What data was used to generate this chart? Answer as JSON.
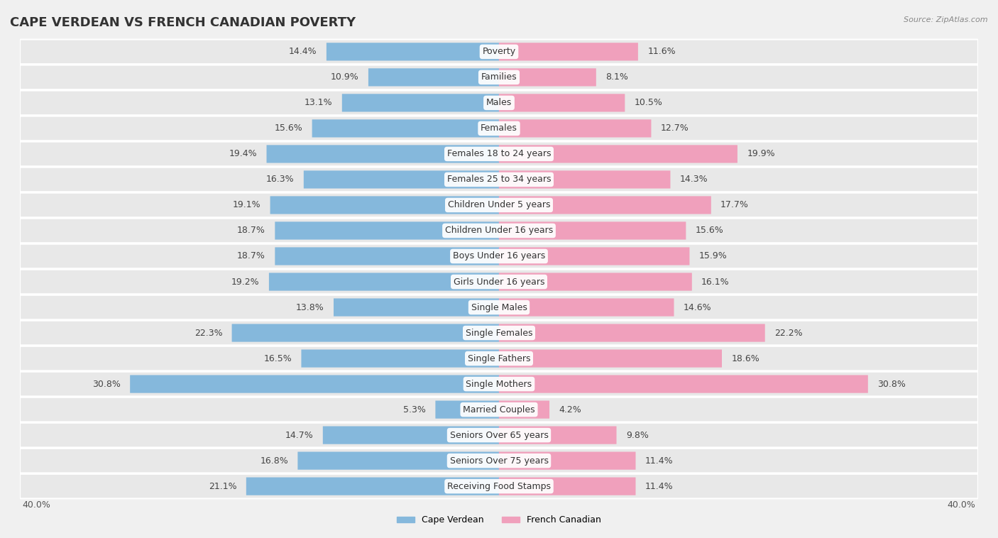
{
  "title": "CAPE VERDEAN VS FRENCH CANADIAN POVERTY",
  "source": "Source: ZipAtlas.com",
  "categories": [
    "Poverty",
    "Families",
    "Males",
    "Females",
    "Females 18 to 24 years",
    "Females 25 to 34 years",
    "Children Under 5 years",
    "Children Under 16 years",
    "Boys Under 16 years",
    "Girls Under 16 years",
    "Single Males",
    "Single Females",
    "Single Fathers",
    "Single Mothers",
    "Married Couples",
    "Seniors Over 65 years",
    "Seniors Over 75 years",
    "Receiving Food Stamps"
  ],
  "cape_verdean": [
    14.4,
    10.9,
    13.1,
    15.6,
    19.4,
    16.3,
    19.1,
    18.7,
    18.7,
    19.2,
    13.8,
    22.3,
    16.5,
    30.8,
    5.3,
    14.7,
    16.8,
    21.1
  ],
  "french_canadian": [
    11.6,
    8.1,
    10.5,
    12.7,
    19.9,
    14.3,
    17.7,
    15.6,
    15.9,
    16.1,
    14.6,
    22.2,
    18.6,
    30.8,
    4.2,
    9.8,
    11.4,
    11.4
  ],
  "cape_verdean_color": "#85b8dc",
  "french_canadian_color": "#f0a0bc",
  "background_color": "#f0f0f0",
  "row_bg": "#e8e8e8",
  "row_gap": "#ffffff",
  "bar_height": 0.68,
  "xlim": 40.0,
  "title_fontsize": 13,
  "label_fontsize": 9,
  "value_fontsize": 9,
  "source_fontsize": 8
}
